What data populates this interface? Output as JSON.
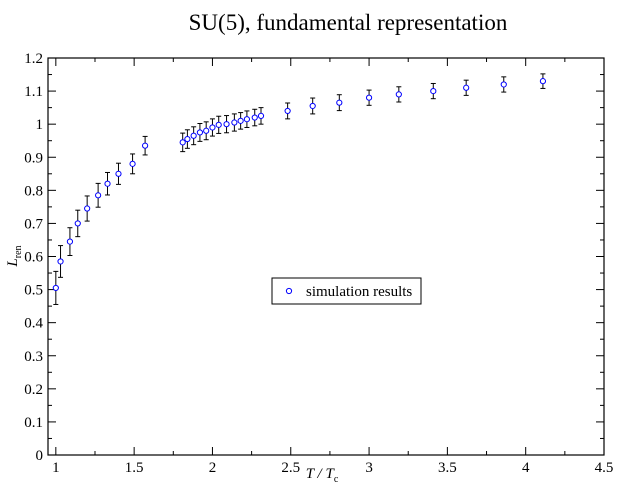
{
  "chart_data": {
    "type": "scatter",
    "title": "SU(5), fundamental representation",
    "xlabel": "T / T",
    "xlabel_sub": "c",
    "ylabel": "L",
    "ylabel_sub": "ren",
    "xlim": [
      0.95,
      4.5
    ],
    "ylim": [
      0,
      1.2
    ],
    "xticks": [
      1,
      1.5,
      2,
      2.5,
      3,
      3.5,
      4,
      4.5
    ],
    "xtick_labels": [
      "1",
      "1.5",
      "2",
      "2.5",
      "3",
      "3.5",
      "4",
      "4.5"
    ],
    "yticks": [
      0,
      0.1,
      0.2,
      0.3,
      0.4,
      0.5,
      0.6,
      0.7,
      0.8,
      0.9,
      1,
      1.1,
      1.2
    ],
    "ytick_labels": [
      "0",
      "0.1",
      "0.2",
      "0.3",
      "0.4",
      "0.5",
      "0.6",
      "0.7",
      "0.8",
      "0.9",
      "1",
      "1.1",
      "1.2"
    ],
    "grid": false,
    "legend_position": "center",
    "series": [
      {
        "name": "simulation results",
        "color": "#0000ff",
        "marker": "circle-open",
        "x": [
          1.0,
          1.03,
          1.09,
          1.14,
          1.2,
          1.27,
          1.33,
          1.4,
          1.49,
          1.57,
          1.81,
          1.84,
          1.88,
          1.92,
          1.96,
          2.0,
          2.04,
          2.09,
          2.14,
          2.18,
          2.22,
          2.27,
          2.31,
          2.48,
          2.64,
          2.81,
          3.0,
          3.19,
          3.41,
          3.62,
          3.86,
          4.11
        ],
        "y": [
          0.505,
          0.585,
          0.645,
          0.7,
          0.745,
          0.785,
          0.82,
          0.85,
          0.88,
          0.935,
          0.945,
          0.955,
          0.965,
          0.975,
          0.98,
          0.99,
          0.998,
          1.0,
          1.005,
          1.01,
          1.015,
          1.02,
          1.025,
          1.04,
          1.055,
          1.065,
          1.08,
          1.09,
          1.1,
          1.11,
          1.12,
          1.13
        ],
        "err": [
          0.05,
          0.048,
          0.042,
          0.04,
          0.038,
          0.036,
          0.034,
          0.032,
          0.03,
          0.028,
          0.028,
          0.028,
          0.027,
          0.027,
          0.027,
          0.026,
          0.026,
          0.026,
          0.026,
          0.025,
          0.025,
          0.025,
          0.025,
          0.024,
          0.024,
          0.024,
          0.023,
          0.023,
          0.023,
          0.023,
          0.023,
          0.022
        ]
      }
    ]
  }
}
